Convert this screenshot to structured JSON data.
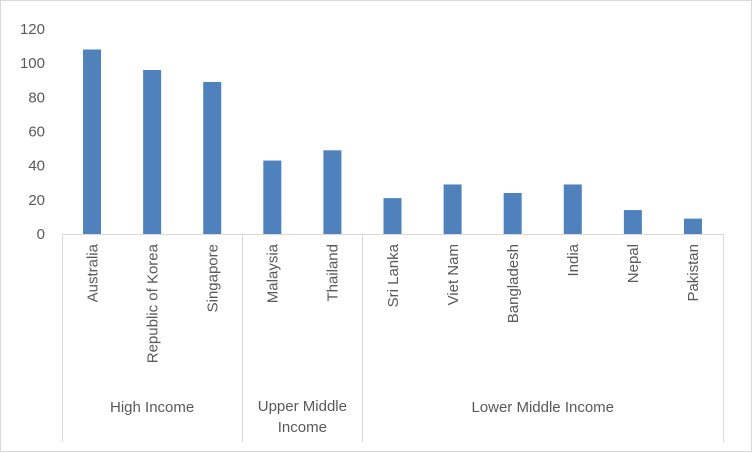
{
  "chart_data": {
    "type": "bar",
    "categories": [
      "Australia",
      "Republic of Korea",
      "Singapore",
      "Malaysia",
      "Thailand",
      "Sri Lanka",
      "Viet Nam",
      "Bangladesh",
      "India",
      "Nepal",
      "Pakistan"
    ],
    "values": [
      108,
      96,
      89,
      43,
      49,
      21,
      29,
      24,
      29,
      14,
      9
    ],
    "groups": [
      {
        "label": [
          "High Income"
        ],
        "count": 3
      },
      {
        "label": [
          "Upper Middle",
          "Income"
        ],
        "count": 2
      },
      {
        "label": [
          "Lower Middle Income"
        ],
        "count": 6
      }
    ],
    "yticks": [
      "0",
      "20",
      "40",
      "60",
      "80",
      "100",
      "120"
    ],
    "ylim": [
      0,
      120
    ],
    "grid": false,
    "legend": "none",
    "bar_color": "#4f81bd",
    "axis_color": "#d9d9d9"
  }
}
